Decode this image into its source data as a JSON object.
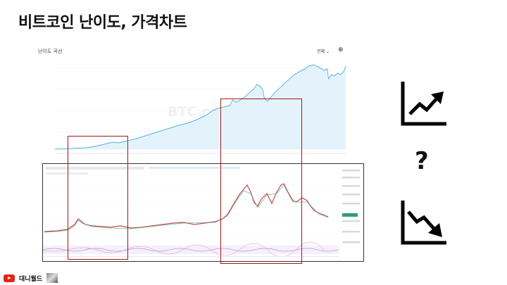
{
  "slide": {
    "title": "비트코인 난이도, 가격차트"
  },
  "difficulty_panel": {
    "label": "난이도 곡선",
    "period": "전체 ⌄",
    "watermark": "BTC.com"
  },
  "price_panel": {
    "source": "TradingView"
  },
  "icons": [
    "trend-up-icon",
    "question-mark-icon",
    "trend-down-icon"
  ],
  "question": "?",
  "footer": {
    "channel": "대니월드"
  },
  "colors": {
    "highlight_box": "#a01818",
    "difficulty_line": "#4fb1dc",
    "difficulty_fill": "#e4f3fb"
  }
}
